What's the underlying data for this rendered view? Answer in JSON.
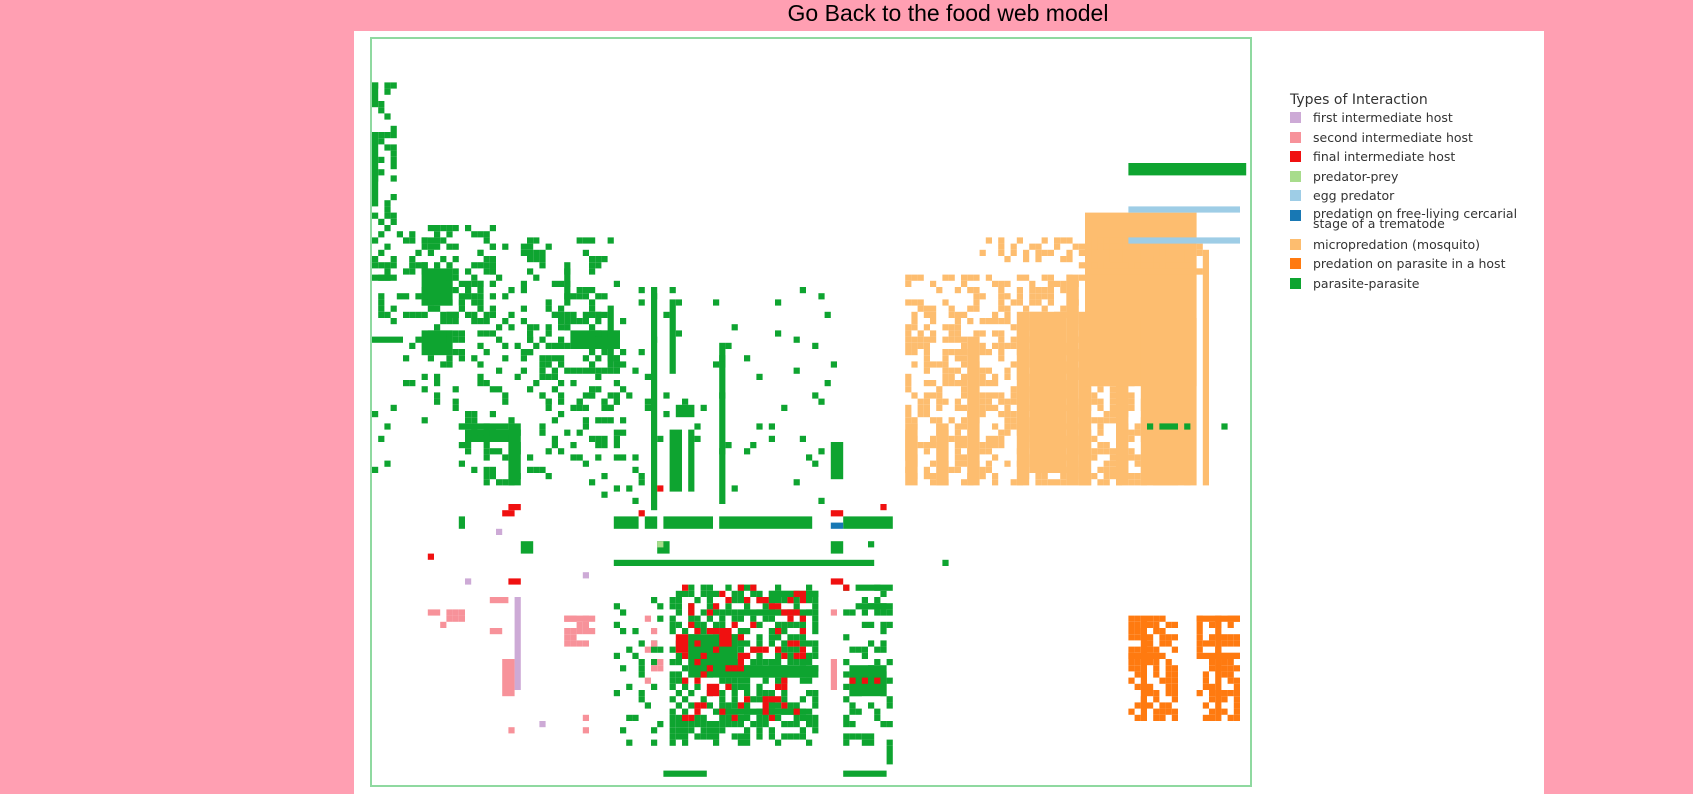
{
  "header": {
    "back_link": "Go Back to the food web model"
  },
  "legend": {
    "title": "Types of Interaction",
    "items": [
      {
        "id": "first-intermediate-host",
        "label": "first intermediate host",
        "color": "#cdaad6"
      },
      {
        "id": "second-intermediate-host",
        "label": "second intermediate host",
        "color": "#f7929a"
      },
      {
        "id": "final-intermediate-host",
        "label": "final intermediate host",
        "color": "#f01010"
      },
      {
        "id": "predator-prey",
        "label": "predator-prey",
        "color": "#a8dc8c"
      },
      {
        "id": "egg-predator",
        "label": "egg predator",
        "color": "#9ecde6"
      },
      {
        "id": "predation-on-free-living-cercarial",
        "label": "predation on free-living cercarial stage of a trematode",
        "color": "#1878b4"
      },
      {
        "id": "micropredation-mosquito",
        "label": "micropredation (mosquito)",
        "color": "#fdbd6f"
      },
      {
        "id": "predation-on-parasite-in-host",
        "label": "predation on parasite in a host",
        "color": "#ff7a10"
      },
      {
        "id": "parasite-parasite",
        "label": "parasite-parasite",
        "color": "#0ea430"
      }
    ]
  },
  "chart_data": {
    "type": "heatmap",
    "title": "",
    "xlabel": "",
    "ylabel": "",
    "grid": false,
    "legend_position": "right",
    "note": "food web interaction matrix; categorical cells colored by interaction type",
    "blocks": [
      {
        "type": "parasite-parasite",
        "rows": [
          48,
          84
        ],
        "cols": [
          0,
          44
        ]
      },
      {
        "type": "parasite-parasite",
        "rows": [
          86,
          120
        ],
        "cols": [
          44,
          88
        ]
      },
      {
        "type": "micropredation-mosquito",
        "rows": [
          12,
          34
        ],
        "cols": [
          98,
          140
        ]
      },
      {
        "type": "micropredation-mosquito",
        "rows": [
          28,
          62
        ],
        "cols": [
          114,
          140
        ]
      },
      {
        "type": "egg-predator",
        "rows": [
          22,
          30
        ],
        "cols": [
          114,
          130
        ]
      },
      {
        "type": "final-intermediate-host",
        "rows": [
          86,
          118
        ],
        "cols": [
          50,
          70
        ]
      },
      {
        "type": "second-intermediate-host",
        "rows": [
          92,
          120
        ],
        "cols": [
          12,
          42
        ]
      },
      {
        "type": "first-intermediate-host",
        "rows": [
          96,
          118
        ],
        "cols": [
          20,
          30
        ]
      },
      {
        "type": "predation-on-parasite-in-host",
        "rows": [
          100,
          118
        ],
        "cols": [
          112,
          136
        ]
      },
      {
        "type": "predation-on-free-living-cercarial",
        "rows": [
          85,
          86
        ],
        "cols": [
          80,
          82
        ]
      },
      {
        "type": "predator-prey",
        "rows": [
          87,
          88
        ],
        "cols": [
          50,
          52
        ]
      }
    ]
  }
}
